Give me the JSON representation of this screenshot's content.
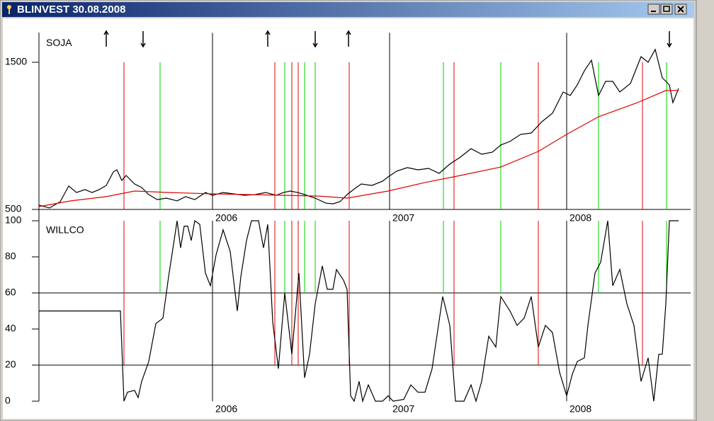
{
  "window": {
    "title": "BLINVEST  30.08.2008"
  },
  "chart_data": [
    {
      "type": "line",
      "label": "SOJA",
      "xlim": [
        2005.02,
        2008.7
      ],
      "xticks": [
        2006,
        2007,
        2008
      ],
      "ylim": [
        500,
        1700
      ],
      "yticks": [
        500,
        1500
      ],
      "series": [
        {
          "color": "#000000",
          "x": [
            2005.02,
            2005.08,
            2005.14,
            2005.188,
            2005.232,
            2005.28,
            2005.32,
            2005.36,
            2005.4,
            2005.44,
            2005.46,
            2005.488,
            2005.512,
            2005.56,
            2005.6,
            2005.64,
            2005.688,
            2005.74,
            2005.8,
            2005.848,
            2005.9,
            2005.96,
            2006,
            2006.06,
            2006.12,
            2006.18,
            2006.24,
            2006.3,
            2006.36,
            2006.4,
            2006.44,
            2006.48,
            2006.52,
            2006.58,
            2006.64,
            2006.68,
            2006.72,
            2006.76,
            2006.8,
            2006.84,
            2006.9,
            2006.96,
            2006.992,
            2007.04,
            2007.1,
            2007.16,
            2007.22,
            2007.28,
            2007.34,
            2007.4,
            2007.46,
            2007.52,
            2007.58,
            2007.628,
            2007.68,
            2007.74,
            2007.8,
            2007.86,
            2007.92,
            2007.98,
            2008.02,
            2008.06,
            2008.1,
            2008.14,
            2008.18,
            2008.22,
            2008.26,
            2008.3,
            2008.36,
            2008.42,
            2008.46,
            2008.5,
            2008.54,
            2008.58,
            2008.6,
            2008.632
          ],
          "values": [
            529,
            510,
            553,
            659,
            615,
            635,
            615,
            635,
            663,
            755,
            769,
            697,
            731,
            673,
            649,
            601,
            567,
            577,
            558,
            587,
            567,
            615,
            596,
            615,
            606,
            596,
            601,
            615,
            596,
            615,
            625,
            615,
            601,
            577,
            543,
            538,
            553,
            601,
            639,
            673,
            663,
            692,
            721,
            760,
            784,
            769,
            779,
            745,
            808,
            856,
            913,
            875,
            889,
            938,
            962,
            1010,
            1019,
            1096,
            1154,
            1298,
            1274,
            1346,
            1442,
            1514,
            1274,
            1370,
            1370,
            1298,
            1356,
            1538,
            1500,
            1587,
            1394,
            1346,
            1226,
            1322
          ]
        },
        {
          "color": "#e00000",
          "x": [
            2005.02,
            2005.2,
            2005.4,
            2005.56,
            2005.76,
            2006,
            2006.4,
            2006.6,
            2006.76,
            2006.992,
            2007.2,
            2007.4,
            2007.628,
            2007.84,
            2008,
            2008.18,
            2008.4,
            2008.56,
            2008.632
          ],
          "values": [
            519,
            558,
            587,
            625,
            615,
            606,
            596,
            591,
            577,
            625,
            683,
            731,
            788,
            894,
            1010,
            1130,
            1226,
            1308,
            1308
          ]
        }
      ],
      "up_arrows": [
        2005.4,
        2006.312,
        2006.768
      ],
      "down_arrows": [
        2005.608,
        2006.58,
        2008.58
      ],
      "sell_lines": {
        "color": "#e00000",
        "x": [
          2005.5,
          2006.352,
          2006.448,
          2006.484,
          2006.772,
          2007.364,
          2007.84,
          2008.428
        ]
      },
      "buy_lines": {
        "color": "#00d000",
        "x": [
          2005.704,
          2006.408,
          2006.52,
          2006.58,
          2007.304,
          2007.628,
          2008.18,
          2008.564
        ]
      }
    },
    {
      "type": "line",
      "label": "WILLCO",
      "xlim": [
        2005.02,
        2008.7
      ],
      "xticks": [
        2006,
        2007,
        2008
      ],
      "ylim": [
        0,
        100
      ],
      "yticks": [
        0,
        20,
        40,
        60,
        80,
        100
      ],
      "hlines": [
        20,
        60
      ],
      "series": [
        {
          "color": "#000000",
          "x": [
            2005.02,
            2005.48,
            2005.5,
            2005.52,
            2005.56,
            2005.58,
            2005.6,
            2005.64,
            2005.68,
            2005.72,
            2005.752,
            2005.78,
            2005.8,
            2005.82,
            2005.84,
            2005.86,
            2005.88,
            2005.9,
            2005.928,
            2005.96,
            2005.988,
            2006.02,
            2006.06,
            2006.1,
            2006.14,
            2006.16,
            2006.192,
            2006.22,
            2006.26,
            2006.288,
            2006.312,
            2006.34,
            2006.372,
            2006.408,
            2006.448,
            2006.488,
            2006.52,
            2006.548,
            2006.58,
            2006.62,
            2006.648,
            2006.68,
            2006.7,
            2006.74,
            2006.76,
            2006.78,
            2006.8,
            2006.828,
            2006.848,
            2006.88,
            2006.92,
            2006.96,
            2006.992,
            2007.02,
            2007.08,
            2007.12,
            2007.16,
            2007.2,
            2007.24,
            2007.3,
            2007.34,
            2007.372,
            2007.42,
            2007.46,
            2007.488,
            2007.52,
            2007.56,
            2007.6,
            2007.628,
            2007.68,
            2007.72,
            2007.76,
            2007.8,
            2007.84,
            2007.88,
            2007.92,
            2007.96,
            2008,
            2008.032,
            2008.06,
            2008.1,
            2008.12,
            2008.16,
            2008.192,
            2008.232,
            2008.26,
            2008.3,
            2008.34,
            2008.38,
            2008.42,
            2008.46,
            2008.492,
            2008.52,
            2008.54,
            2008.56,
            2008.58,
            2008.632
          ],
          "values": [
            50,
            50,
            0,
            5,
            6,
            2,
            11,
            22,
            43,
            46,
            69,
            87,
            100,
            85,
            97,
            97,
            89,
            100,
            98,
            71,
            64,
            81,
            95,
            83,
            50,
            69,
            89,
            100,
            100,
            85,
            98,
            44,
            18,
            60,
            26,
            71,
            13,
            26,
            54,
            75,
            62,
            62,
            73,
            67,
            62,
            3,
            0,
            11,
            0,
            9,
            0,
            0,
            3,
            0,
            1,
            9,
            5,
            5,
            18,
            58,
            42,
            0,
            0,
            9,
            0,
            11,
            36,
            30,
            58,
            50,
            42,
            46,
            58,
            30,
            42,
            38,
            16,
            3,
            15,
            22,
            24,
            42,
            71,
            77,
            100,
            64,
            73,
            54,
            42,
            11,
            24,
            0,
            26,
            26,
            54,
            100,
            100
          ]
        }
      ]
    }
  ]
}
